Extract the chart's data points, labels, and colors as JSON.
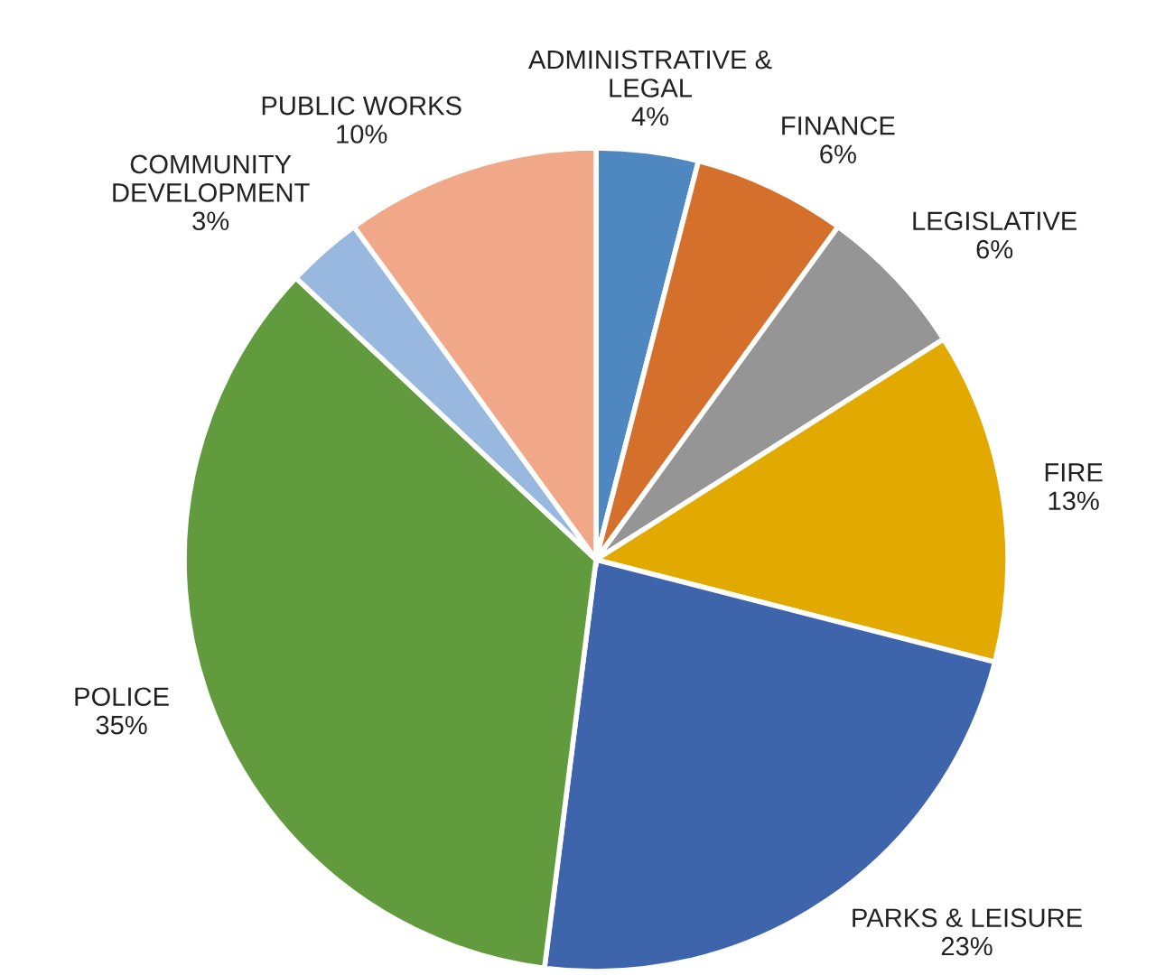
{
  "chart_data": {
    "type": "pie",
    "categories": [
      "ADMINISTRATIVE &\nLEGAL",
      "FINANCE",
      "LEGISLATIVE",
      "FIRE",
      "PARKS & LEISURE",
      "POLICE",
      "COMMUNITY\nDEVELOPMENT",
      "PUBLIC WORKS"
    ],
    "values": [
      4,
      6,
      6,
      13,
      23,
      35,
      3,
      10
    ],
    "value_labels": [
      "4%",
      "6%",
      "6%",
      "13%",
      "23%",
      "35%",
      "3%",
      "10%"
    ],
    "colors": [
      "#4f88c0",
      "#d5702c",
      "#959595",
      "#e2a900",
      "#3e64ab",
      "#629a3e",
      "#98b8e0",
      "#f0a889"
    ]
  }
}
